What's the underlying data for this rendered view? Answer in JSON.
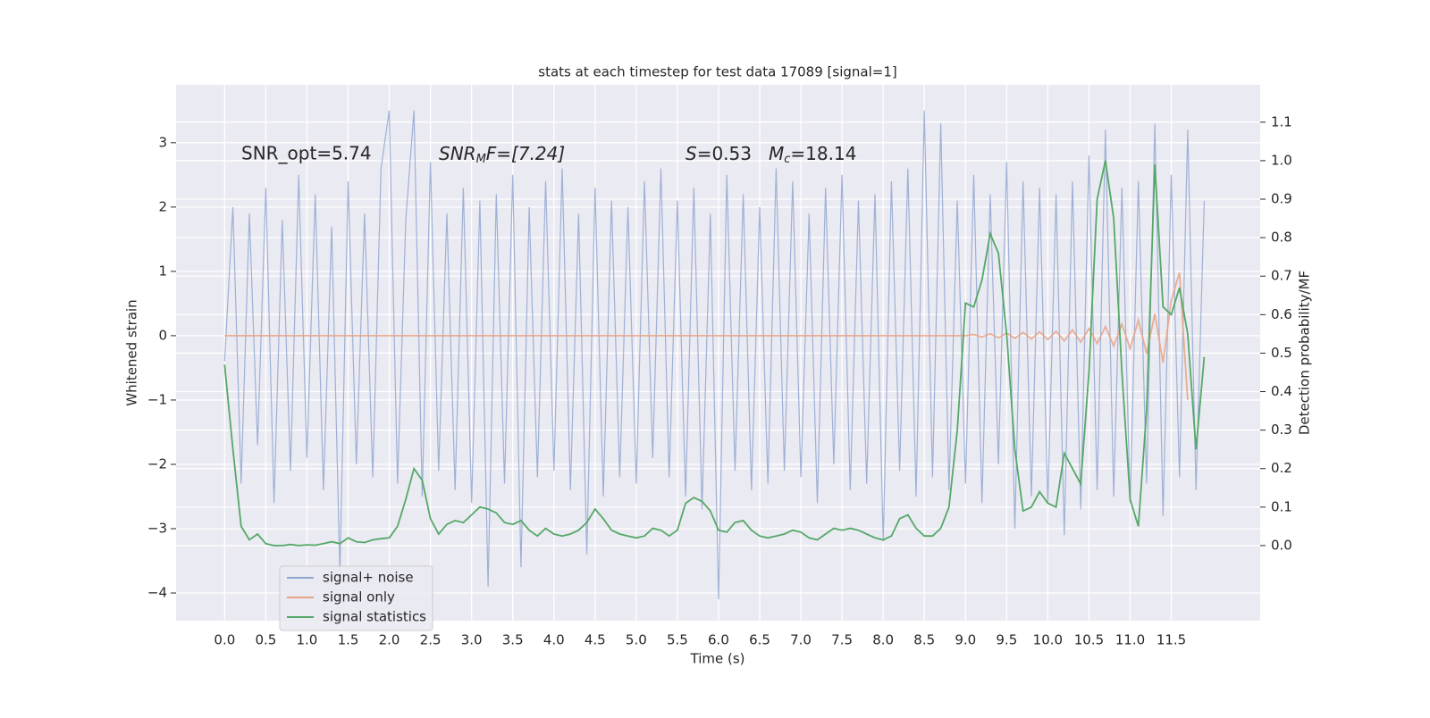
{
  "chart_data": {
    "type": "line",
    "title": "stats at each timestep for test data 17089 [signal=1]",
    "xlabel": "Time (s)",
    "ylabel": "Whitened strain",
    "y2label": "Detection probability/MF",
    "annotations": [
      {
        "text": "SNR_opt=5.74"
      },
      {
        "italic": "SNR",
        "sub": "M",
        "rest": "F=[7.24]"
      },
      {
        "italic": "S",
        "rest": "=0.53"
      },
      {
        "italic": "M",
        "sub": "c",
        "rest": "=18.14"
      }
    ],
    "x": [
      0.0,
      0.1,
      0.2,
      0.3,
      0.4,
      0.5,
      0.6,
      0.7,
      0.8,
      0.9,
      1.0,
      1.1,
      1.2,
      1.3,
      1.4,
      1.5,
      1.6,
      1.7,
      1.8,
      1.9,
      2.0,
      2.1,
      2.2,
      2.3,
      2.4,
      2.5,
      2.6,
      2.7,
      2.8,
      2.9,
      3.0,
      3.1,
      3.2,
      3.3,
      3.4,
      3.5,
      3.6,
      3.7,
      3.8,
      3.9,
      4.0,
      4.1,
      4.2,
      4.3,
      4.4,
      4.5,
      4.6,
      4.7,
      4.8,
      4.9,
      5.0,
      5.1,
      5.2,
      5.3,
      5.4,
      5.5,
      5.6,
      5.7,
      5.8,
      5.9,
      6.0,
      6.1,
      6.2,
      6.3,
      6.4,
      6.5,
      6.6,
      6.7,
      6.8,
      6.9,
      7.0,
      7.1,
      7.2,
      7.3,
      7.4,
      7.5,
      7.6,
      7.7,
      7.8,
      7.9,
      8.0,
      8.1,
      8.2,
      8.3,
      8.4,
      8.5,
      8.6,
      8.7,
      8.8,
      8.9,
      9.0,
      9.1,
      9.2,
      9.3,
      9.4,
      9.5,
      9.6,
      9.7,
      9.8,
      9.9,
      10.0,
      10.1,
      10.2,
      10.3,
      10.4,
      10.5,
      10.6,
      10.7,
      10.8,
      10.9,
      11.0,
      11.1,
      11.2,
      11.3,
      11.4,
      11.5,
      11.6,
      11.7,
      11.8,
      11.9
    ],
    "series": [
      {
        "name": "signal+ noise",
        "color": "#92a6d0",
        "values": [
          -0.4,
          2.0,
          -2.3,
          1.9,
          -1.7,
          2.3,
          -2.6,
          1.8,
          -2.1,
          2.5,
          -1.9,
          2.2,
          -2.4,
          1.7,
          -3.7,
          2.4,
          -2.0,
          1.9,
          -2.2,
          2.6,
          3.5,
          -2.3,
          1.8,
          3.5,
          -2.5,
          2.7,
          -2.1,
          1.9,
          -2.4,
          2.3,
          -2.6,
          2.1,
          -3.9,
          2.2,
          -2.3,
          2.5,
          -3.6,
          2.0,
          -2.2,
          2.4,
          -2.1,
          2.6,
          -2.4,
          1.9,
          -3.4,
          2.3,
          -2.5,
          2.1,
          -2.2,
          2.0,
          -2.3,
          2.4,
          -1.9,
          2.6,
          -2.2,
          2.1,
          -2.5,
          2.3,
          -2.7,
          1.9,
          -4.1,
          2.5,
          -2.1,
          2.2,
          -2.4,
          2.0,
          -2.3,
          2.6,
          -2.1,
          2.4,
          -2.2,
          1.9,
          -2.6,
          2.3,
          -2.0,
          2.5,
          -2.4,
          2.1,
          -2.3,
          2.2,
          -3.2,
          2.4,
          -2.1,
          2.6,
          -2.5,
          3.5,
          -2.2,
          3.3,
          -2.4,
          2.1,
          -2.3,
          2.5,
          -2.6,
          2.2,
          -2.0,
          2.7,
          -3.0,
          2.4,
          -2.5,
          2.3,
          -2.6,
          2.2,
          -3.1,
          2.4,
          -2.7,
          2.8,
          -2.4,
          3.2,
          -2.5,
          2.3,
          -2.6,
          2.4,
          -2.3,
          3.3,
          -2.8,
          2.5,
          -2.2,
          3.2,
          -2.4,
          2.1
        ]
      },
      {
        "name": "signal only",
        "color": "#e8a385",
        "x": [
          0.0,
          9.0,
          9.1,
          9.2,
          9.3,
          9.4,
          9.5,
          9.6,
          9.7,
          9.8,
          9.9,
          10.0,
          10.1,
          10.2,
          10.3,
          10.4,
          10.5,
          10.6,
          10.7,
          10.8,
          10.9,
          11.0,
          11.1,
          11.2,
          11.3,
          11.4,
          11.5,
          11.6,
          11.7
        ],
        "values": [
          0,
          0,
          0.02,
          -0.02,
          0.03,
          -0.03,
          0.04,
          -0.04,
          0.05,
          -0.05,
          0.06,
          -0.06,
          0.07,
          -0.08,
          0.09,
          -0.1,
          0.11,
          -0.12,
          0.14,
          -0.16,
          0.18,
          -0.2,
          0.24,
          -0.28,
          0.34,
          -0.42,
          0.55,
          0.98,
          -1.0
        ]
      },
      {
        "name": "signal statistics",
        "color": "#55a868",
        "axis": "y2",
        "values": [
          0.47,
          0.25,
          0.05,
          0.015,
          0.03,
          0.005,
          0.0,
          0.0,
          0.003,
          0.0,
          0.002,
          0.001,
          0.005,
          0.01,
          0.005,
          0.02,
          0.01,
          0.008,
          0.015,
          0.018,
          0.02,
          0.05,
          0.12,
          0.2,
          0.17,
          0.07,
          0.03,
          0.055,
          0.065,
          0.06,
          0.08,
          0.1,
          0.095,
          0.085,
          0.06,
          0.055,
          0.065,
          0.04,
          0.025,
          0.045,
          0.03,
          0.025,
          0.03,
          0.04,
          0.06,
          0.095,
          0.07,
          0.04,
          0.03,
          0.025,
          0.02,
          0.025,
          0.045,
          0.04,
          0.025,
          0.04,
          0.11,
          0.125,
          0.115,
          0.09,
          0.04,
          0.035,
          0.06,
          0.065,
          0.04,
          0.025,
          0.02,
          0.025,
          0.03,
          0.04,
          0.035,
          0.02,
          0.015,
          0.03,
          0.045,
          0.04,
          0.045,
          0.04,
          0.03,
          0.02,
          0.015,
          0.025,
          0.07,
          0.08,
          0.045,
          0.025,
          0.025,
          0.045,
          0.1,
          0.3,
          0.63,
          0.62,
          0.69,
          0.81,
          0.76,
          0.55,
          0.25,
          0.09,
          0.1,
          0.14,
          0.11,
          0.1,
          0.24,
          0.2,
          0.16,
          0.45,
          0.9,
          1.0,
          0.85,
          0.45,
          0.12,
          0.05,
          0.35,
          0.99,
          0.62,
          0.6,
          0.67,
          0.55,
          0.25,
          0.49
        ]
      }
    ],
    "xlim": [
      -0.59,
      12.58
    ],
    "ylim": [
      -4.43,
      3.9
    ],
    "y2lim": [
      -0.195,
      1.197
    ],
    "xticks": [
      {
        "value": 0,
        "label": "0.0"
      },
      {
        "value": 0.5,
        "label": "0.5"
      },
      {
        "value": 1,
        "label": "1.0"
      },
      {
        "value": 1.5,
        "label": "1.5"
      },
      {
        "value": 2,
        "label": "2.0"
      },
      {
        "value": 2.5,
        "label": "2.5"
      },
      {
        "value": 3,
        "label": "3.0"
      },
      {
        "value": 3.5,
        "label": "3.5"
      },
      {
        "value": 4,
        "label": "4.0"
      },
      {
        "value": 4.5,
        "label": "4.5"
      },
      {
        "value": 5,
        "label": "5.0"
      },
      {
        "value": 5.5,
        "label": "5.5"
      },
      {
        "value": 6,
        "label": "6.0"
      },
      {
        "value": 6.5,
        "label": "6.5"
      },
      {
        "value": 7,
        "label": "7.0"
      },
      {
        "value": 7.5,
        "label": "7.5"
      },
      {
        "value": 8,
        "label": "8.0"
      },
      {
        "value": 8.5,
        "label": "8.5"
      },
      {
        "value": 9,
        "label": "9.0"
      },
      {
        "value": 9.5,
        "label": "9.5"
      },
      {
        "value": 10,
        "label": "10.0"
      },
      {
        "value": 10.5,
        "label": "10.5"
      },
      {
        "value": 11,
        "label": "11.0"
      },
      {
        "value": 11.5,
        "label": "11.5"
      }
    ],
    "yticks": [
      {
        "value": -4,
        "label": "−4"
      },
      {
        "value": -3,
        "label": "−3"
      },
      {
        "value": -2,
        "label": "−2"
      },
      {
        "value": -1,
        "label": "−1"
      },
      0,
      1,
      2,
      3
    ],
    "y2ticks": [
      {
        "value": 0,
        "label": "0.0"
      },
      0.1,
      0.2,
      0.3,
      0.4,
      0.5,
      0.6,
      0.7,
      0.8,
      0.9,
      {
        "value": 1,
        "label": "1.0"
      },
      1.1
    ],
    "grid": true,
    "legend": "lower left"
  }
}
